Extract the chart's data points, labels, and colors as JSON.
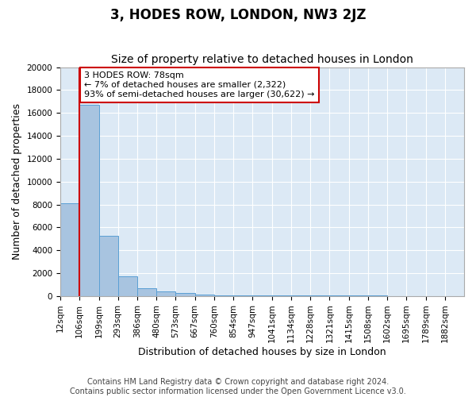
{
  "title": "3, HODES ROW, LONDON, NW3 2JZ",
  "subtitle": "Size of property relative to detached houses in London",
  "xlabel": "Distribution of detached houses by size in London",
  "ylabel": "Number of detached properties",
  "bar_values": [
    8100,
    16700,
    5300,
    1750,
    700,
    380,
    270,
    150,
    100,
    80,
    70,
    60,
    55,
    50,
    45,
    40,
    35,
    30,
    25,
    20,
    15
  ],
  "x_tick_labels": [
    "12sqm",
    "106sqm",
    "199sqm",
    "293sqm",
    "386sqm",
    "480sqm",
    "573sqm",
    "667sqm",
    "760sqm",
    "854sqm",
    "947sqm",
    "1041sqm",
    "1134sqm",
    "1228sqm",
    "1321sqm",
    "1415sqm",
    "1508sqm",
    "1602sqm",
    "1695sqm",
    "1789sqm",
    "1882sqm"
  ],
  "bar_color": "#a8c4e0",
  "bar_edge_color": "#5a9fd4",
  "property_line_x": 1.0,
  "property_line_color": "#cc0000",
  "annotation_text": "3 HODES ROW: 78sqm\n← 7% of detached houses are smaller (2,322)\n93% of semi-detached houses are larger (30,622) →",
  "annotation_box_color": "#ffffff",
  "annotation_box_edge": "#cc0000",
  "ylim": [
    0,
    20000
  ],
  "yticks": [
    0,
    2000,
    4000,
    6000,
    8000,
    10000,
    12000,
    14000,
    16000,
    18000,
    20000
  ],
  "background_color": "#dce9f5",
  "footer_line1": "Contains HM Land Registry data © Crown copyright and database right 2024.",
  "footer_line2": "Contains public sector information licensed under the Open Government Licence v3.0.",
  "title_fontsize": 12,
  "subtitle_fontsize": 10,
  "axis_label_fontsize": 9,
  "tick_fontsize": 7.5,
  "annotation_fontsize": 8,
  "footer_fontsize": 7
}
